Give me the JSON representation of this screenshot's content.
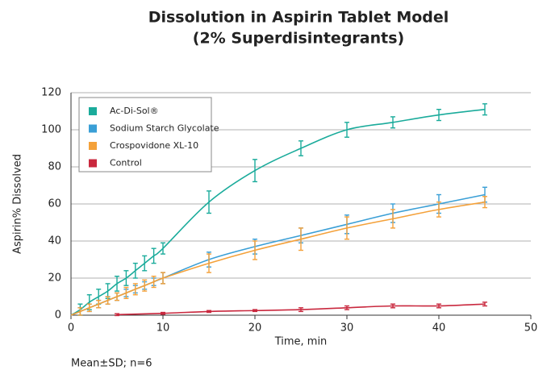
{
  "chart_data": {
    "type": "line",
    "title": "Dissolution in Aspirin Tablet Model",
    "subtitle": "(2% Superdisintegrants)",
    "x_label": "Time, min",
    "y_label": "Aspirin% Dissolved",
    "note": "Mean±SD; n=6",
    "xlim": [
      0,
      50
    ],
    "xticks": [
      0,
      10,
      20,
      30,
      40,
      50
    ],
    "ylim": [
      0,
      120
    ],
    "yticks": [
      0,
      20,
      40,
      60,
      80,
      100,
      120
    ],
    "grid": true,
    "legend": "upper left",
    "series": [
      {
        "name": "Ac-Di-Sol®",
        "color": "#1aab9b",
        "x": [
          0,
          1,
          2,
          3,
          4,
          5,
          6,
          7,
          8,
          9,
          10,
          15,
          20,
          25,
          30,
          35,
          40,
          45
        ],
        "values": [
          0,
          3,
          7,
          10,
          13,
          17,
          20,
          24,
          28,
          32,
          36,
          61,
          78,
          90,
          100,
          104,
          108,
          111
        ],
        "errors": [
          0,
          3,
          4,
          4,
          4,
          4,
          4,
          4,
          4,
          4,
          3,
          6,
          6,
          4,
          4,
          3,
          3,
          3
        ]
      },
      {
        "name": "Sodium Starch Glycolate",
        "color": "#3a9fd6",
        "x": [
          0,
          1,
          2,
          3,
          4,
          5,
          6,
          7,
          8,
          9,
          10,
          15,
          20,
          25,
          30,
          35,
          40,
          45
        ],
        "values": [
          0,
          2,
          4,
          6,
          8,
          10,
          12,
          14,
          16,
          18,
          20,
          30,
          37,
          43,
          49,
          55,
          60,
          65
        ],
        "errors": [
          0,
          2,
          2,
          2,
          2,
          2,
          2,
          2,
          2,
          2,
          3,
          4,
          4,
          4,
          5,
          5,
          5,
          4
        ]
      },
      {
        "name": "Crospovidone XL-10",
        "color": "#f4a13a",
        "x": [
          0,
          1,
          2,
          3,
          4,
          5,
          6,
          7,
          8,
          9,
          10,
          15,
          20,
          25,
          30,
          35,
          40,
          45
        ],
        "values": [
          0,
          2,
          4,
          6,
          8,
          10,
          12,
          14,
          16,
          18,
          20,
          28,
          35,
          41,
          47,
          52,
          57,
          61
        ],
        "errors": [
          0,
          2,
          2,
          2,
          2,
          2,
          3,
          3,
          3,
          3,
          3,
          5,
          5,
          6,
          6,
          5,
          4,
          3
        ]
      },
      {
        "name": "Control",
        "color": "#c9283e",
        "x": [
          5,
          10,
          15,
          20,
          25,
          30,
          35,
          40,
          45
        ],
        "values": [
          0.3,
          1,
          2,
          2.5,
          3,
          4,
          5,
          5,
          6
        ],
        "errors": [
          0.5,
          0.5,
          0.5,
          0.5,
          1,
          1,
          1,
          1,
          1
        ]
      }
    ]
  }
}
